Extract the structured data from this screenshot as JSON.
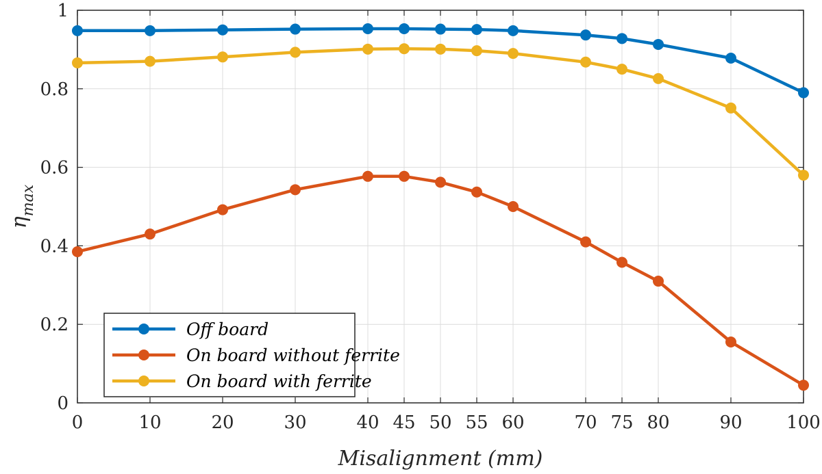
{
  "chart_data": {
    "type": "line",
    "x": [
      0,
      10,
      20,
      30,
      40,
      45,
      50,
      55,
      60,
      70,
      75,
      80,
      90,
      100
    ],
    "series": [
      {
        "name": "Off board",
        "color": "#0072BD",
        "values": [
          0.948,
          0.948,
          0.95,
          0.952,
          0.953,
          0.953,
          0.952,
          0.951,
          0.948,
          0.937,
          0.928,
          0.913,
          0.878,
          0.79
        ]
      },
      {
        "name": "On board without ferrite",
        "color": "#D95319",
        "values": [
          0.385,
          0.43,
          0.492,
          0.543,
          0.577,
          0.577,
          0.562,
          0.537,
          0.5,
          0.41,
          0.358,
          0.31,
          0.155,
          0.045
        ]
      },
      {
        "name": "On board with ferrite",
        "color": "#EDB120",
        "values": [
          0.866,
          0.87,
          0.881,
          0.893,
          0.901,
          0.902,
          0.901,
          0.897,
          0.89,
          0.868,
          0.85,
          0.826,
          0.751,
          0.58
        ]
      }
    ],
    "title": "",
    "xlabel": "Misalignment (mm)",
    "ylabel_main": "η",
    "ylabel_sub": "max",
    "xlim": [
      0,
      100
    ],
    "ylim": [
      0,
      1
    ],
    "xticks": [
      0,
      10,
      20,
      30,
      40,
      45,
      50,
      55,
      60,
      70,
      75,
      80,
      90,
      100
    ],
    "yticks": [
      0,
      0.2,
      0.4,
      0.6,
      0.8,
      1
    ],
    "ytick_labels": [
      "0",
      "0.2",
      "0.4",
      "0.6",
      "0.8",
      "1"
    ],
    "grid": true,
    "legend_position": "bottom-left"
  }
}
